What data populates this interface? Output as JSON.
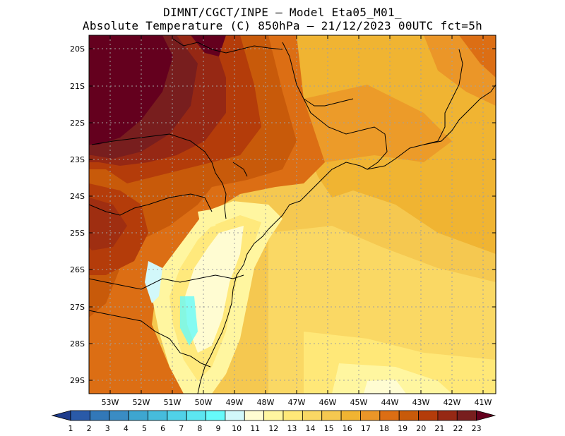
{
  "title": {
    "line1": "DIMNT/CGCT/INPE –  Model Eta05_M01_",
    "line2": "Absolute Temperature (C) 850hPa –  21/12/2023 00UTC fct=5h"
  },
  "axes": {
    "lat_labels": [
      "20S",
      "21S",
      "22S",
      "23S",
      "24S",
      "25S",
      "26S",
      "27S",
      "28S",
      "29S"
    ],
    "lon_labels": [
      "53W",
      "52W",
      "51W",
      "50W",
      "49W",
      "48W",
      "47W",
      "46W",
      "45W",
      "44W",
      "43W",
      "42W",
      "41W"
    ]
  },
  "colorbar": {
    "labels": [
      "1",
      "2",
      "3",
      "4",
      "5",
      "6",
      "7",
      "8",
      "9",
      "10",
      "11",
      "12",
      "13",
      "14",
      "15",
      "16",
      "17",
      "18",
      "19",
      "20",
      "21",
      "22",
      "23"
    ],
    "colors": [
      "#1e3c8c",
      "#2a5aa8",
      "#3278b8",
      "#3a8cc4",
      "#3ea6d0",
      "#46bcdc",
      "#50d2e8",
      "#5ce6f0",
      "#66fafa",
      "#d2f8fa",
      "#fffcd2",
      "#fff6a0",
      "#ffe878",
      "#fad864",
      "#f5c850",
      "#f0b432",
      "#eb9628",
      "#dc6e14",
      "#c85a0a",
      "#b43c0a",
      "#962814",
      "#781e1e",
      "#64001e"
    ]
  }
}
